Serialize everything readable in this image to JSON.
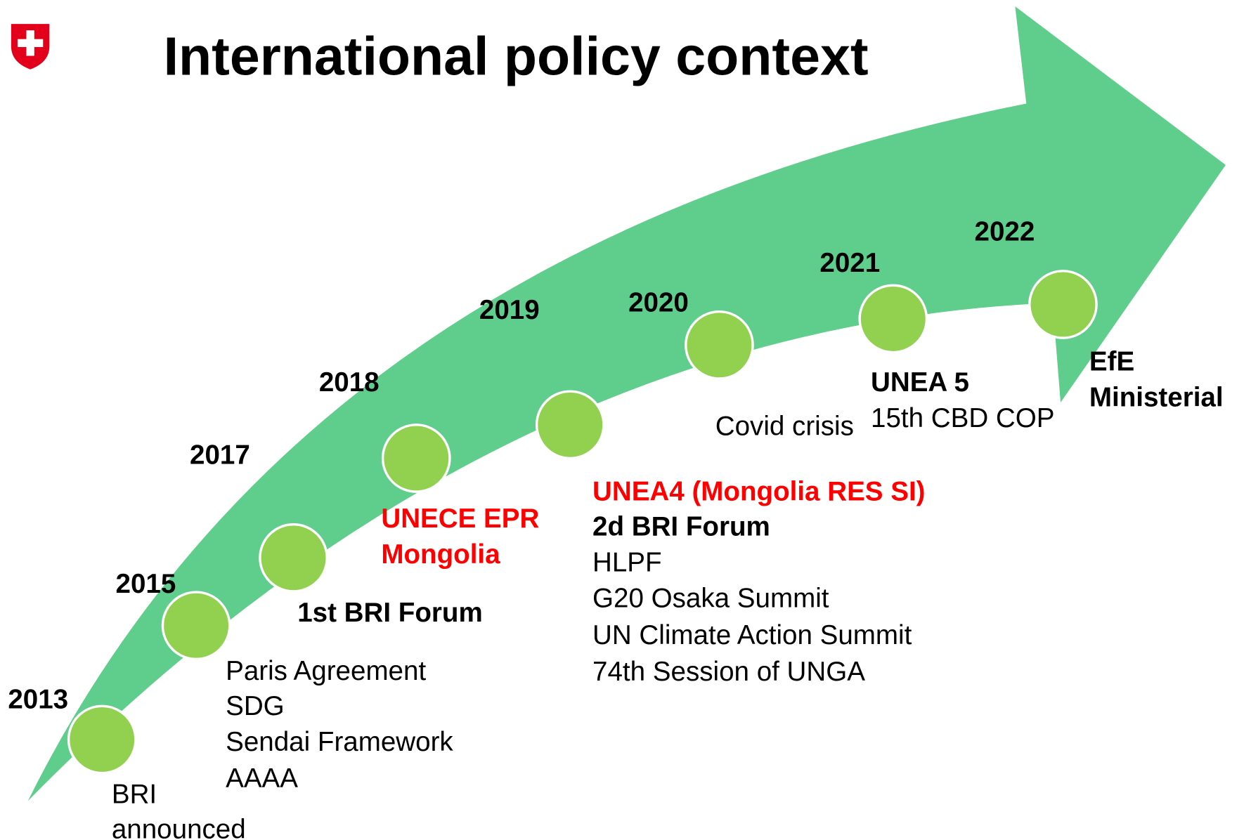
{
  "header": {
    "title": "International policy context"
  },
  "milestones": [
    {
      "year": "2013",
      "events": [
        "BRI",
        "announced"
      ]
    },
    {
      "year": "2015",
      "events": [
        "Paris Agreement",
        "SDG",
        "Sendai Framework",
        "AAAA"
      ]
    },
    {
      "year": "2017",
      "events": [
        "1st BRI Forum"
      ]
    },
    {
      "year": "2018",
      "events": [
        "UNECE EPR",
        "Mongolia"
      ]
    },
    {
      "year": "2019",
      "events": [
        "UNEA4 (Mongolia RES SI)",
        "2d BRI Forum",
        "HLPF",
        "G20 Osaka Summit",
        "UN Climate Action Summit",
        "74th Session of UNGA"
      ]
    },
    {
      "year": "2020",
      "events": [
        "Covid crisis"
      ]
    },
    {
      "year": "2021",
      "events": [
        "UNEA 5",
        "15th CBD COP"
      ]
    },
    {
      "year": "2022",
      "events": [
        "EfE",
        "Ministerial"
      ]
    }
  ]
}
